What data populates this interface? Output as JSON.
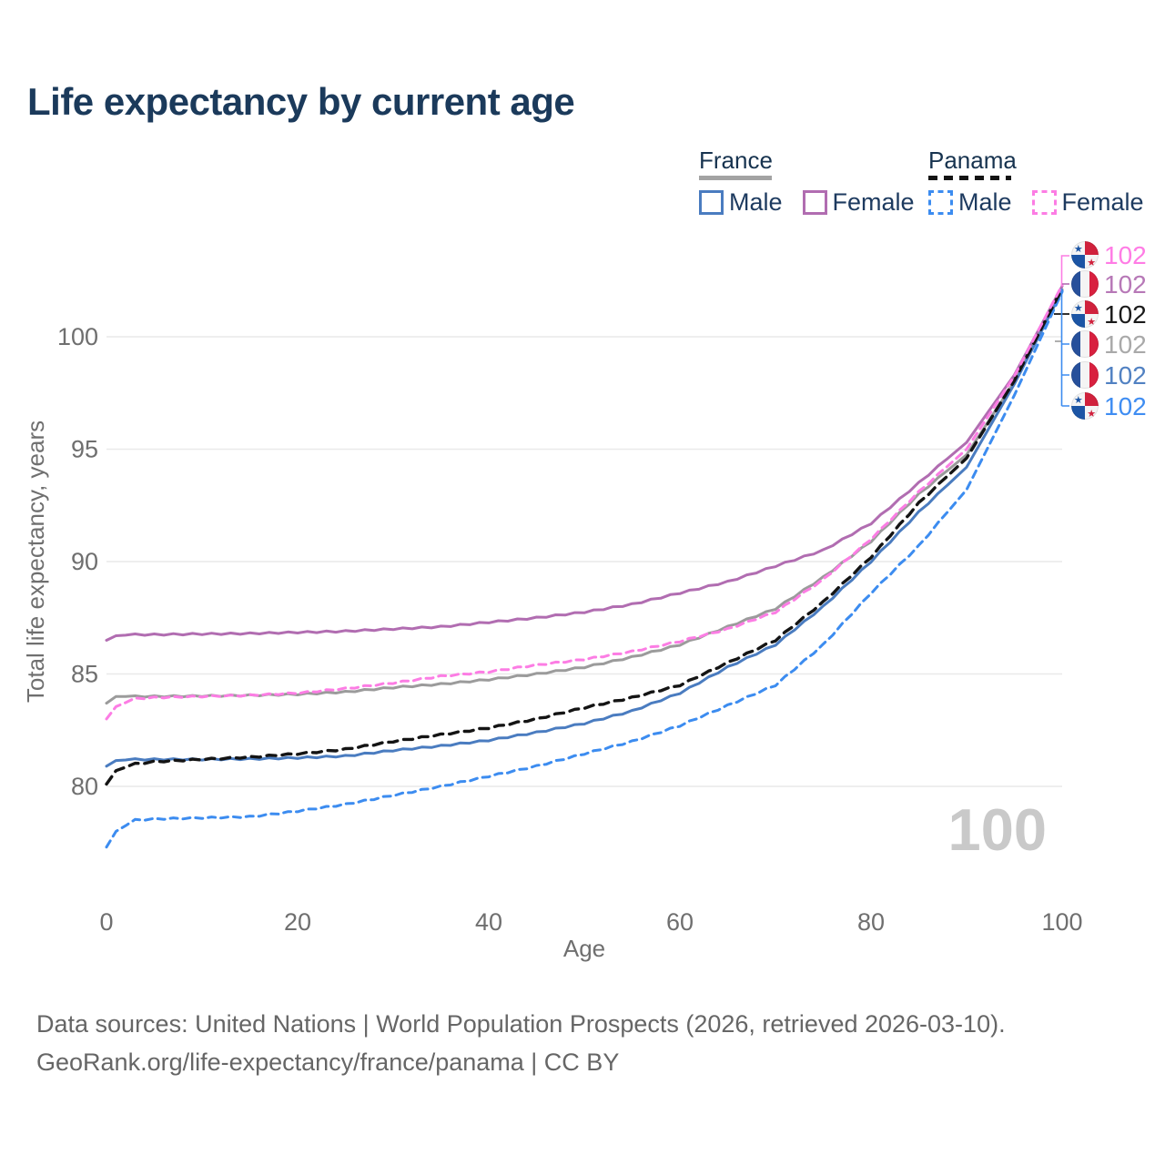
{
  "title": "Life expectancy by current age",
  "legend": {
    "groups": [
      {
        "country": "France",
        "line_style": "solid",
        "line_color": "#a3a3a3",
        "items": [
          {
            "label": "Male",
            "color": "#4a7cc0",
            "dashed": false
          },
          {
            "label": "Female",
            "color": "#b16db1",
            "dashed": false
          }
        ]
      },
      {
        "country": "Panama",
        "line_style": "dashed",
        "line_color": "#141414",
        "items": [
          {
            "label": "Male",
            "color": "#3c8cf0",
            "dashed": true
          },
          {
            "label": "Female",
            "color": "#fc7de4",
            "dashed": true
          }
        ]
      }
    ]
  },
  "chart_data": {
    "type": "line",
    "title": "Life expectancy by current age",
    "xlabel": "Age",
    "ylabel": "Total life expectancy, years",
    "xlim": [
      0,
      100
    ],
    "ylim": [
      77,
      103
    ],
    "x_ticks": [
      0,
      20,
      40,
      60,
      80,
      100
    ],
    "y_ticks": [
      80,
      85,
      90,
      95,
      100
    ],
    "grid": "horizontal-only",
    "legend_position": "top-right",
    "watermark": "100",
    "x": [
      0,
      1,
      3,
      5,
      10,
      15,
      20,
      25,
      30,
      35,
      40,
      45,
      50,
      55,
      60,
      65,
      70,
      75,
      80,
      85,
      90,
      95,
      100
    ],
    "series": [
      {
        "name": "France",
        "country": "france",
        "sex": "both",
        "color": "#9b9b9b",
        "dash": null,
        "width": 3,
        "end_label": "102",
        "end_label_color": "#a9a9a9",
        "end_label_row": 3,
        "values": [
          83.7,
          84.0,
          84.0,
          84.0,
          84.02,
          84.05,
          84.1,
          84.2,
          84.4,
          84.55,
          84.75,
          85.0,
          85.3,
          85.75,
          86.3,
          87.1,
          87.9,
          89.3,
          90.9,
          93.0,
          94.75,
          98.0,
          102.1
        ]
      },
      {
        "name": "France Male",
        "country": "france",
        "sex": "male",
        "color": "#4a7cc0",
        "dash": null,
        "width": 3,
        "end_label": "102",
        "end_label_color": "#5181c2",
        "end_label_row": 4,
        "values": [
          80.9,
          81.15,
          81.2,
          81.2,
          81.2,
          81.22,
          81.27,
          81.35,
          81.6,
          81.8,
          82.05,
          82.4,
          82.8,
          83.35,
          84.15,
          85.3,
          86.3,
          88.0,
          90.0,
          92.2,
          94.2,
          97.9,
          102.05
        ]
      },
      {
        "name": "France Female",
        "country": "france",
        "sex": "female",
        "color": "#b16db1",
        "dash": null,
        "width": 3,
        "end_label": "102",
        "end_label_color": "#b778b7",
        "end_label_row": 1,
        "values": [
          86.5,
          86.7,
          86.75,
          86.75,
          86.78,
          86.8,
          86.85,
          86.9,
          87.0,
          87.1,
          87.3,
          87.5,
          87.75,
          88.1,
          88.6,
          89.1,
          89.8,
          90.5,
          91.7,
          93.5,
          95.3,
          98.3,
          102.25
        ]
      },
      {
        "name": "Panama Male",
        "country": "panama",
        "sex": "male",
        "color": "#3c8cf0",
        "dash": "8 6",
        "width": 3,
        "end_label": "102",
        "end_label_color": "#3f8df2",
        "end_label_row": 5,
        "values": [
          77.3,
          78.0,
          78.5,
          78.55,
          78.6,
          78.65,
          78.9,
          79.2,
          79.6,
          80.0,
          80.45,
          80.9,
          81.45,
          82.0,
          82.7,
          83.6,
          84.5,
          86.3,
          88.6,
          90.7,
          93.2,
          97.4,
          102.0
        ]
      },
      {
        "name": "Panama",
        "country": "panama",
        "sex": "both",
        "color": "#141414",
        "dash": "10 7",
        "width": 3.4,
        "end_label": "102",
        "end_label_color": "#1a1a1a",
        "end_label_row": 2,
        "values": [
          80.1,
          80.7,
          81.0,
          81.1,
          81.2,
          81.3,
          81.45,
          81.65,
          82.0,
          82.3,
          82.6,
          83.0,
          83.5,
          83.95,
          84.5,
          85.5,
          86.5,
          88.2,
          90.2,
          92.6,
          94.6,
          98.05,
          102.15
        ]
      },
      {
        "name": "Panama Female",
        "country": "panama",
        "sex": "female",
        "color": "#fc7de4",
        "dash": "8 6",
        "width": 3,
        "end_label": "102",
        "end_label_color": "#ff7ce5",
        "end_label_row": 0,
        "values": [
          83.0,
          83.55,
          83.9,
          83.95,
          84.0,
          84.05,
          84.15,
          84.35,
          84.6,
          84.9,
          85.1,
          85.4,
          85.65,
          86.0,
          86.45,
          87.0,
          87.75,
          89.2,
          91.0,
          93.1,
          95.0,
          98.25,
          102.3
        ]
      }
    ],
    "flag_colors": {
      "france_blue": "#27509b",
      "france_red": "#d8203f",
      "panama_blue": "#1c55a5",
      "panama_red": "#d0213c"
    }
  },
  "footer": {
    "line1": "Data sources: United Nations | World Population Prospects (2026, retrieved 2026-03-10).",
    "line2": "GeoRank.org/life-expectancy/france/panama | CC BY"
  }
}
